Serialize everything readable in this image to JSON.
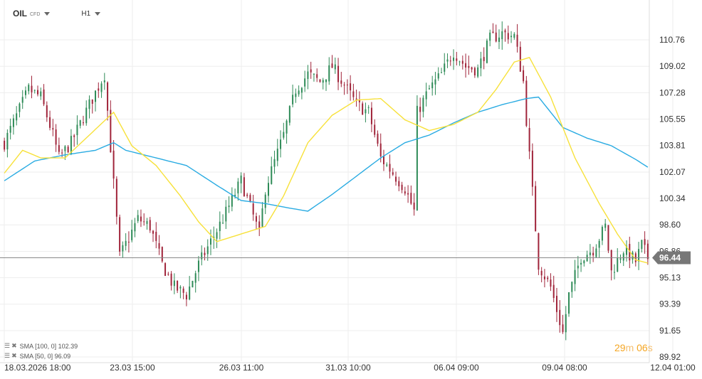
{
  "header": {
    "symbol": "OIL",
    "symbol_tag": "CFD",
    "timeframe": "H1"
  },
  "indicators": [
    {
      "label": "SMA [100, 0] 102.39",
      "color": "#29abe2"
    },
    {
      "label": "SMA [50, 0] 96.09",
      "color": "#f7e13a"
    }
  ],
  "countdown": {
    "minutes": "29",
    "min_unit": "m",
    "seconds": "06",
    "sec_unit": "s"
  },
  "chart_data": {
    "type": "candlestick",
    "ylim": [
      89.92,
      112.5
    ],
    "y_ticks": [
      "110.76",
      "109.02",
      "107.28",
      "105.55",
      "103.81",
      "102.07",
      "100.34",
      "98.60",
      "96.86",
      "95.13",
      "93.39",
      "91.65",
      "89.92"
    ],
    "x_ticks": [
      "18.03.2026 18:00",
      "23.03 15:00",
      "26.03 11:00",
      "31.03 10:00",
      "06.04 09:00",
      "09.04 08:00",
      "12.04 01:00"
    ],
    "last_price": {
      "value": 96.44,
      "label": "96.44"
    },
    "colors": {
      "up": "#2e8b57",
      "down": "#a0243a",
      "sma100": "#29abe2",
      "sma50": "#f7e13a",
      "price_line": "#888888",
      "grid": "#eeeeee"
    },
    "close_anchors": [
      [
        0,
        104.0
      ],
      [
        8,
        107.5
      ],
      [
        12,
        107.0
      ],
      [
        16,
        104.5
      ],
      [
        18,
        103.0
      ],
      [
        22,
        104.0
      ],
      [
        28,
        106.5
      ],
      [
        33,
        108.5
      ],
      [
        38,
        96.5
      ],
      [
        44,
        99.0
      ],
      [
        48,
        98.5
      ],
      [
        52,
        96.0
      ],
      [
        56,
        94.5
      ],
      [
        60,
        94.0
      ],
      [
        64,
        96.0
      ],
      [
        68,
        97.5
      ],
      [
        72,
        99.0
      ],
      [
        78,
        101.5
      ],
      [
        84,
        98.0
      ],
      [
        86,
        101.0
      ],
      [
        92,
        104.5
      ],
      [
        96,
        107.5
      ],
      [
        100,
        108.5
      ],
      [
        104,
        108.0
      ],
      [
        108,
        109.0
      ],
      [
        112,
        107.8
      ],
      [
        116,
        106.5
      ],
      [
        120,
        106.0
      ],
      [
        124,
        103.0
      ],
      [
        128,
        102.0
      ],
      [
        132,
        101.0
      ],
      [
        135,
        99.5
      ],
      [
        136,
        106.0
      ],
      [
        140,
        107.5
      ],
      [
        144,
        108.5
      ],
      [
        148,
        110.0
      ],
      [
        152,
        109.0
      ],
      [
        156,
        108.8
      ],
      [
        160,
        110.8
      ],
      [
        164,
        111.2
      ],
      [
        168,
        111.0
      ],
      [
        171,
        108.0
      ],
      [
        172,
        105.5
      ],
      [
        176,
        96.0
      ],
      [
        180,
        94.5
      ],
      [
        184,
        91.5
      ],
      [
        186,
        94.0
      ],
      [
        190,
        96.5
      ],
      [
        194,
        97.0
      ],
      [
        198,
        98.5
      ],
      [
        200,
        95.5
      ],
      [
        204,
        97.0
      ],
      [
        208,
        96.2
      ],
      [
        210,
        97.3
      ],
      [
        212,
        96.44
      ]
    ],
    "sma50_anchors": [
      [
        0,
        102.0
      ],
      [
        6,
        103.5
      ],
      [
        12,
        103.0
      ],
      [
        20,
        103.0
      ],
      [
        28,
        104.5
      ],
      [
        36,
        106.0
      ],
      [
        42,
        103.8
      ],
      [
        50,
        102.5
      ],
      [
        58,
        100.5
      ],
      [
        64,
        98.8
      ],
      [
        70,
        97.5
      ],
      [
        78,
        98.0
      ],
      [
        86,
        98.5
      ],
      [
        92,
        100.5
      ],
      [
        100,
        104.0
      ],
      [
        108,
        105.8
      ],
      [
        116,
        106.8
      ],
      [
        124,
        106.9
      ],
      [
        132,
        105.5
      ],
      [
        140,
        104.8
      ],
      [
        148,
        105.2
      ],
      [
        156,
        106.0
      ],
      [
        162,
        107.5
      ],
      [
        168,
        109.3
      ],
      [
        173,
        109.6
      ],
      [
        180,
        107.0
      ],
      [
        188,
        103.0
      ],
      [
        196,
        100.0
      ],
      [
        202,
        98.0
      ],
      [
        208,
        96.3
      ],
      [
        212,
        96.09
      ]
    ],
    "sma100_anchors": [
      [
        0,
        101.5
      ],
      [
        10,
        102.8
      ],
      [
        20,
        103.2
      ],
      [
        30,
        103.5
      ],
      [
        36,
        104.0
      ],
      [
        40,
        103.5
      ],
      [
        50,
        103.0
      ],
      [
        60,
        102.5
      ],
      [
        70,
        101.2
      ],
      [
        78,
        100.2
      ],
      [
        86,
        100.0
      ],
      [
        94,
        99.7
      ],
      [
        100,
        99.5
      ],
      [
        108,
        100.6
      ],
      [
        116,
        101.8
      ],
      [
        124,
        103.0
      ],
      [
        132,
        104.0
      ],
      [
        140,
        104.5
      ],
      [
        148,
        105.3
      ],
      [
        156,
        106.0
      ],
      [
        164,
        106.5
      ],
      [
        172,
        106.9
      ],
      [
        176,
        107.0
      ],
      [
        184,
        105.0
      ],
      [
        192,
        104.3
      ],
      [
        200,
        103.8
      ],
      [
        208,
        102.9
      ],
      [
        212,
        102.39
      ]
    ]
  }
}
